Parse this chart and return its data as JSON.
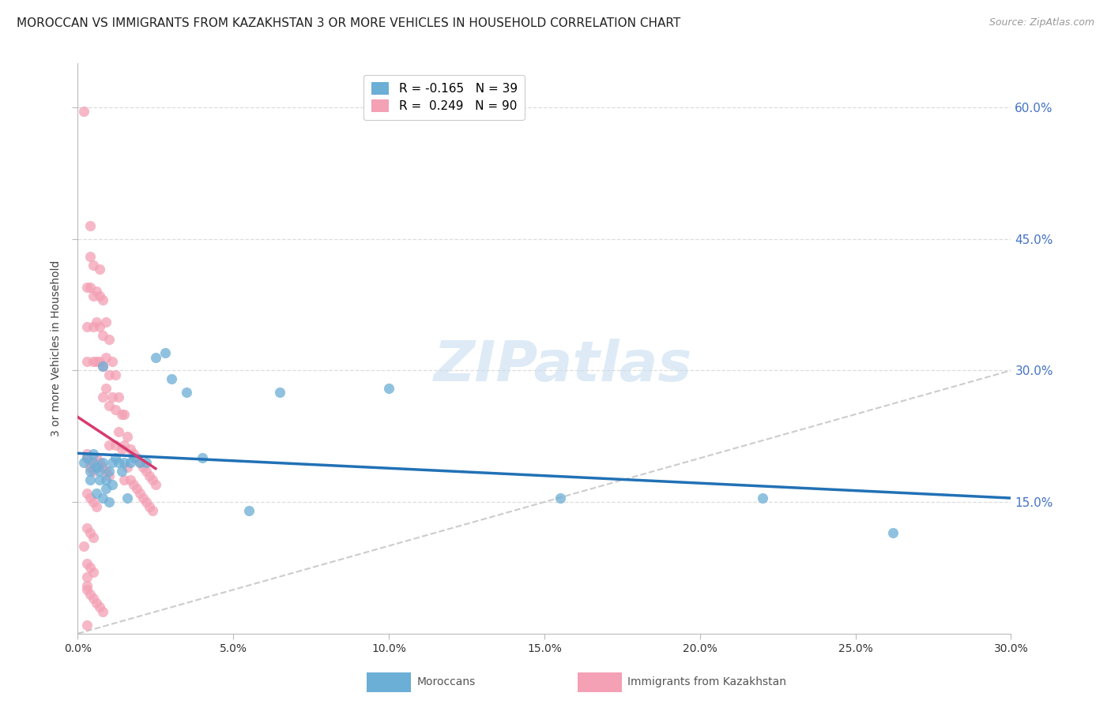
{
  "title": "MOROCCAN VS IMMIGRANTS FROM KAZAKHSTAN 3 OR MORE VEHICLES IN HOUSEHOLD CORRELATION CHART",
  "source": "Source: ZipAtlas.com",
  "ylabel": "3 or more Vehicles in Household",
  "xaxis_label_blue": "Moroccans",
  "xaxis_label_pink": "Immigrants from Kazakhstan",
  "x_min": 0.0,
  "x_max": 0.3,
  "y_min": 0.0,
  "y_max": 0.65,
  "right_ytick_vals": [
    0.6,
    0.45,
    0.3,
    0.15
  ],
  "right_ytick_labels": [
    "60.0%",
    "45.0%",
    "30.0%",
    "15.0%"
  ],
  "bottom_xtick_vals": [
    0.0,
    0.05,
    0.1,
    0.15,
    0.2,
    0.25,
    0.3
  ],
  "bottom_xtick_labels": [
    "0.0%",
    "5.0%",
    "10.0%",
    "15.0%",
    "20.0%",
    "25.0%",
    "30.0%"
  ],
  "legend_blue_R": "-0.165",
  "legend_blue_N": "39",
  "legend_pink_R": "0.249",
  "legend_pink_N": "90",
  "blue_color": "#6baed6",
  "pink_color": "#f4a0b5",
  "blue_line_color": "#2171b5",
  "pink_line_color": "#d63b6e",
  "diagonal_color": "#cccccc",
  "blue_scatter_x": [
    0.002,
    0.003,
    0.004,
    0.004,
    0.005,
    0.005,
    0.006,
    0.006,
    0.007,
    0.007,
    0.008,
    0.008,
    0.009,
    0.009,
    0.01,
    0.01,
    0.011,
    0.011,
    0.012,
    0.013,
    0.014,
    0.015,
    0.016,
    0.017,
    0.018,
    0.02,
    0.022,
    0.025,
    0.028,
    0.03,
    0.035,
    0.04,
    0.055,
    0.065,
    0.1,
    0.155,
    0.22,
    0.262,
    0.008
  ],
  "blue_scatter_y": [
    0.195,
    0.2,
    0.185,
    0.175,
    0.195,
    0.205,
    0.19,
    0.16,
    0.175,
    0.185,
    0.195,
    0.155,
    0.165,
    0.175,
    0.185,
    0.15,
    0.17,
    0.195,
    0.2,
    0.195,
    0.185,
    0.195,
    0.155,
    0.195,
    0.2,
    0.195,
    0.195,
    0.315,
    0.32,
    0.29,
    0.275,
    0.2,
    0.14,
    0.275,
    0.28,
    0.155,
    0.155,
    0.115,
    0.305
  ],
  "pink_scatter_x": [
    0.002,
    0.003,
    0.003,
    0.003,
    0.004,
    0.004,
    0.004,
    0.005,
    0.005,
    0.005,
    0.005,
    0.006,
    0.006,
    0.006,
    0.007,
    0.007,
    0.007,
    0.007,
    0.008,
    0.008,
    0.008,
    0.008,
    0.009,
    0.009,
    0.009,
    0.01,
    0.01,
    0.01,
    0.01,
    0.011,
    0.011,
    0.012,
    0.012,
    0.012,
    0.013,
    0.013,
    0.014,
    0.014,
    0.015,
    0.015,
    0.015,
    0.016,
    0.016,
    0.017,
    0.017,
    0.018,
    0.018,
    0.019,
    0.019,
    0.02,
    0.02,
    0.021,
    0.021,
    0.022,
    0.022,
    0.023,
    0.023,
    0.024,
    0.024,
    0.025,
    0.003,
    0.003,
    0.004,
    0.004,
    0.005,
    0.006,
    0.007,
    0.008,
    0.009,
    0.01,
    0.003,
    0.004,
    0.005,
    0.006,
    0.003,
    0.004,
    0.005,
    0.003,
    0.004,
    0.005,
    0.003,
    0.003,
    0.004,
    0.005,
    0.006,
    0.007,
    0.008,
    0.003,
    0.003,
    0.002
  ],
  "pink_scatter_y": [
    0.595,
    0.395,
    0.35,
    0.31,
    0.465,
    0.43,
    0.395,
    0.42,
    0.385,
    0.35,
    0.31,
    0.39,
    0.355,
    0.31,
    0.415,
    0.385,
    0.35,
    0.31,
    0.38,
    0.34,
    0.305,
    0.27,
    0.355,
    0.315,
    0.28,
    0.335,
    0.295,
    0.26,
    0.215,
    0.31,
    0.27,
    0.295,
    0.255,
    0.215,
    0.27,
    0.23,
    0.25,
    0.21,
    0.25,
    0.215,
    0.175,
    0.225,
    0.19,
    0.21,
    0.175,
    0.205,
    0.17,
    0.2,
    0.165,
    0.195,
    0.16,
    0.19,
    0.155,
    0.185,
    0.15,
    0.18,
    0.145,
    0.175,
    0.14,
    0.17,
    0.2,
    0.205,
    0.195,
    0.19,
    0.185,
    0.2,
    0.195,
    0.19,
    0.185,
    0.18,
    0.16,
    0.155,
    0.15,
    0.145,
    0.12,
    0.115,
    0.11,
    0.08,
    0.075,
    0.07,
    0.055,
    0.05,
    0.045,
    0.04,
    0.035,
    0.03,
    0.025,
    0.01,
    0.065,
    0.1
  ],
  "background_color": "#ffffff",
  "grid_color": "#dddddd",
  "title_fontsize": 11,
  "source_fontsize": 9,
  "axis_label_fontsize": 10,
  "tick_fontsize": 10,
  "legend_fontsize": 11,
  "watermark_text": "ZIPatlas",
  "watermark_color": "#c8dff0"
}
